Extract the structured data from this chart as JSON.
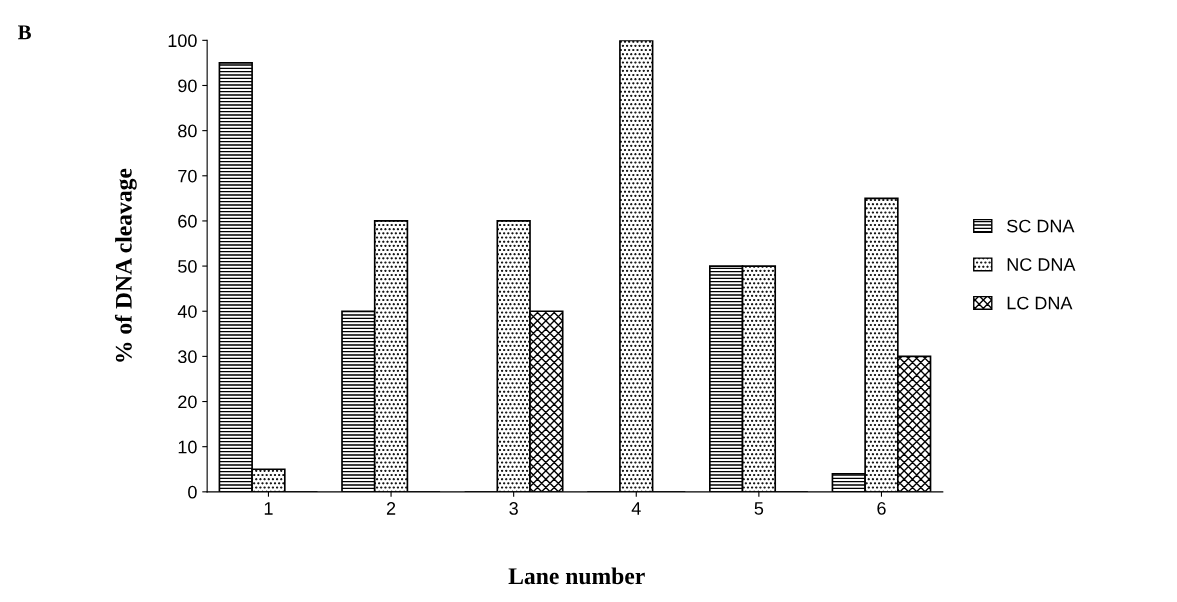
{
  "chart_data": {
    "type": "bar",
    "xlabel": "Lane number",
    "ylabel": "% of DNA cleavage",
    "annotations": [
      "B"
    ],
    "categories": [
      "1",
      "2",
      "3",
      "4",
      "5",
      "6"
    ],
    "series": [
      {
        "name": "SC DNA",
        "color": "#000000",
        "values": [
          95,
          40,
          0,
          0,
          50,
          4
        ]
      },
      {
        "name": "NC DNA",
        "color": "#000000",
        "values": [
          5,
          60,
          60,
          100,
          50,
          65
        ]
      },
      {
        "name": "LC DNA",
        "color": "#000000",
        "values": [
          0,
          0,
          40,
          0,
          0,
          30
        ]
      }
    ],
    "ylim": [
      0,
      100
    ],
    "yticks": [
      0,
      10,
      20,
      30,
      40,
      50,
      60,
      70,
      80,
      90,
      100
    ],
    "grid": false,
    "legend": "right"
  }
}
